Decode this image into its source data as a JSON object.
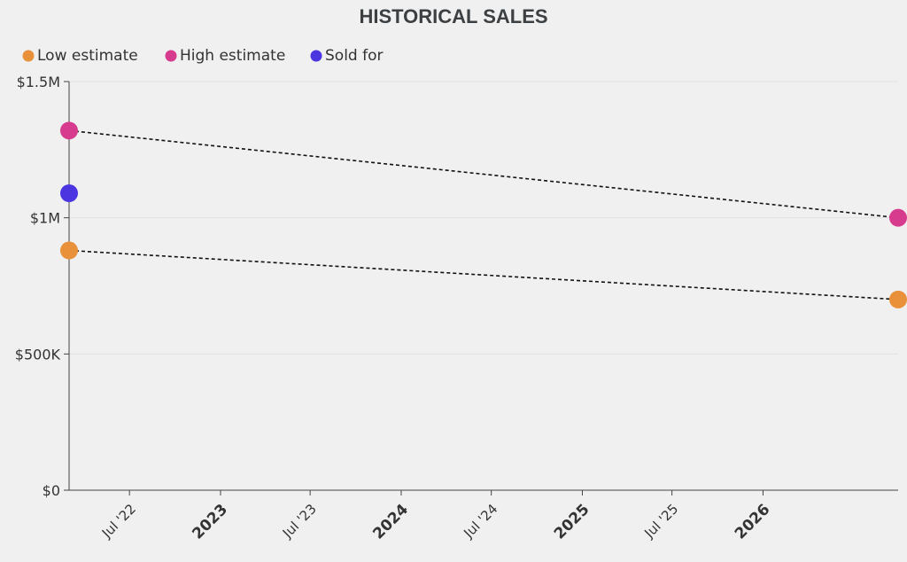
{
  "chart_data": {
    "type": "scatter",
    "title": "HISTORICAL SALES",
    "xlabel": "",
    "ylabel": "",
    "x_range": [
      "2022-03-01",
      "2026-10-01"
    ],
    "ylim": [
      0,
      1500000
    ],
    "y_ticks": [
      {
        "value": 0,
        "label": "$0"
      },
      {
        "value": 500000,
        "label": "$500K"
      },
      {
        "value": 1000000,
        "label": "$1M"
      },
      {
        "value": 1500000,
        "label": "$1.5M"
      }
    ],
    "x_ticks": [
      {
        "date": "2022-07-01",
        "label": "Jul '22",
        "major": false
      },
      {
        "date": "2023-01-01",
        "label": "2023",
        "major": true
      },
      {
        "date": "2023-07-01",
        "label": "Jul '23",
        "major": false
      },
      {
        "date": "2024-01-01",
        "label": "2024",
        "major": true
      },
      {
        "date": "2024-07-01",
        "label": "Jul '24",
        "major": false
      },
      {
        "date": "2025-01-01",
        "label": "2025",
        "major": true
      },
      {
        "date": "2025-07-01",
        "label": "Jul '25",
        "major": false
      },
      {
        "date": "2026-01-01",
        "label": "2026",
        "major": true
      }
    ],
    "grid": true,
    "legend_position": "top-left",
    "series": [
      {
        "name": "Low estimate",
        "color": "#e8913a",
        "points": [
          {
            "date": "2022-03-01",
            "value": 880000
          },
          {
            "date": "2026-10-01",
            "value": 700000
          }
        ]
      },
      {
        "name": "High estimate",
        "color": "#d63b8d",
        "points": [
          {
            "date": "2022-03-01",
            "value": 1320000
          },
          {
            "date": "2026-10-01",
            "value": 1000000
          }
        ]
      },
      {
        "name": "Sold for",
        "color": "#4a35e0",
        "points": [
          {
            "date": "2022-03-01",
            "value": 1090000
          }
        ]
      }
    ],
    "trend_lines": [
      "Low estimate",
      "High estimate"
    ]
  }
}
